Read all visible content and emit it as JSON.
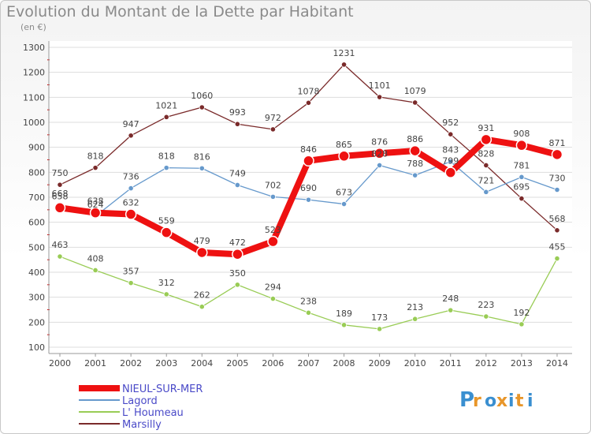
{
  "header": {
    "title": "Evolution du Montant de la Dette par Habitant",
    "subtitle": "(en €)"
  },
  "logo": {
    "text": "Proxiti"
  },
  "chart_data": {
    "type": "line",
    "title": "Evolution du Montant de la Dette par Habitant",
    "subtitle": "(en €)",
    "xlabel": "",
    "ylabel": "",
    "ylim": [
      100,
      1300
    ],
    "yticks": [
      100,
      200,
      300,
      400,
      500,
      600,
      700,
      800,
      900,
      1000,
      1100,
      1200,
      1300
    ],
    "categories": [
      "2000",
      "2001",
      "2002",
      "2003",
      "2004",
      "2005",
      "2006",
      "2007",
      "2008",
      "2009",
      "2010",
      "2011",
      "2012",
      "2013",
      "2014"
    ],
    "legend_position": "bottom-left",
    "series": [
      {
        "name": "Marsilly",
        "color": "#7a2a2a",
        "values": [
          750,
          818,
          947,
          1021,
          1060,
          993,
          972,
          1078,
          1231,
          1101,
          1079,
          952,
          828,
          695,
          568
        ]
      },
      {
        "name": "L' Houmeau",
        "color": "#99cc55",
        "values": [
          463,
          408,
          357,
          312,
          262,
          350,
          294,
          238,
          189,
          173,
          213,
          248,
          223,
          192,
          455
        ]
      },
      {
        "name": "Lagord",
        "color": "#6699cc",
        "values": [
          668,
          624,
          736,
          818,
          816,
          749,
          702,
          690,
          673,
          828,
          788,
          843,
          721,
          781,
          730
        ]
      },
      {
        "name": "NIEUL-SUR-MER",
        "color": "#ee1111",
        "values": [
          658,
          638,
          632,
          559,
          479,
          472,
          523,
          846,
          865,
          876,
          886,
          799,
          931,
          908,
          871
        ]
      }
    ]
  }
}
